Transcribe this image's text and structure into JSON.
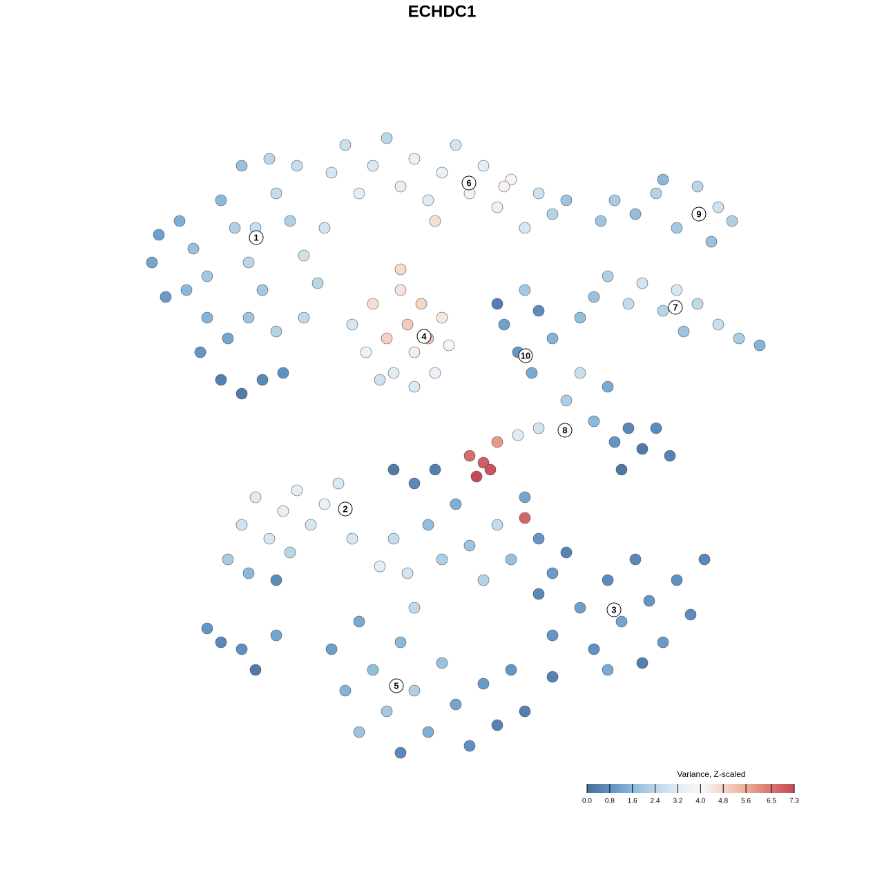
{
  "chart_data": {
    "type": "scatter",
    "title": "ECHDC1",
    "xlim": [
      0,
      128
    ],
    "ylim": [
      0,
      128
    ],
    "x": [
      22,
      24,
      26,
      28,
      30,
      32,
      34,
      36,
      38,
      40,
      42,
      44,
      46,
      35,
      39,
      43,
      30,
      33,
      36,
      40,
      44,
      32,
      35,
      38,
      41,
      29,
      27,
      23,
      47,
      37,
      48,
      50,
      52,
      54,
      56,
      58,
      60,
      62,
      64,
      66,
      68,
      70,
      72,
      74,
      76,
      78,
      80,
      82,
      63,
      73,
      87,
      89,
      92,
      95,
      98,
      101,
      104,
      106,
      103,
      96,
      86,
      88,
      91,
      93,
      96,
      99,
      101,
      104,
      107,
      110,
      84,
      98,
      51,
      53,
      54,
      56,
      57,
      58,
      59,
      60,
      61,
      62,
      63,
      64,
      65,
      55,
      60,
      58,
      73,
      75,
      77,
      78,
      80,
      76,
      72,
      82,
      84,
      86,
      88,
      89,
      91,
      93,
      95,
      97,
      90,
      78,
      75,
      68,
      69,
      70,
      72,
      71,
      76,
      33,
      35,
      37,
      39,
      41,
      43,
      45,
      47,
      49,
      51,
      36,
      40,
      42,
      55,
      57,
      59,
      60,
      62,
      64,
      66,
      68,
      70,
      72,
      74,
      76,
      78,
      80,
      63,
      57,
      78,
      80,
      82,
      84,
      86,
      88,
      90,
      92,
      94,
      96,
      98,
      100,
      102,
      88,
      93,
      80,
      48,
      50,
      52,
      54,
      56,
      58,
      60,
      62,
      64,
      66,
      68,
      70,
      72,
      74,
      52,
      58,
      76,
      60,
      30,
      32,
      35,
      37,
      40
    ],
    "y": [
      90,
      85,
      96,
      92,
      88,
      99,
      95,
      90,
      86,
      100,
      96,
      91,
      87,
      104,
      105,
      104,
      82,
      79,
      82,
      80,
      82,
      73,
      71,
      73,
      74,
      77,
      86,
      94,
      95,
      95,
      103,
      107,
      100,
      104,
      108,
      101,
      105,
      99,
      103,
      107,
      100,
      104,
      98,
      102,
      95,
      100,
      97,
      99,
      96,
      101,
      96,
      99,
      97,
      100,
      95,
      101,
      98,
      96,
      93,
      102,
      85,
      88,
      84,
      87,
      83,
      80,
      84,
      81,
      79,
      78,
      82,
      86,
      81,
      77,
      84,
      79,
      74,
      86,
      81,
      77,
      84,
      79,
      74,
      82,
      78,
      73,
      72,
      89,
      81,
      77,
      74,
      83,
      79,
      86,
      84,
      70,
      74,
      67,
      72,
      64,
      66,
      63,
      66,
      62,
      60,
      66,
      65,
      62,
      59,
      61,
      64,
      60,
      53,
      47,
      52,
      56,
      50,
      54,
      57,
      52,
      55,
      58,
      50,
      45,
      44,
      48,
      46,
      50,
      45,
      58,
      52,
      47,
      55,
      49,
      44,
      52,
      47,
      56,
      50,
      45,
      60,
      60,
      42,
      36,
      48,
      40,
      34,
      44,
      38,
      47,
      41,
      35,
      44,
      39,
      47,
      31,
      32,
      30,
      34,
      28,
      38,
      31,
      25,
      35,
      28,
      22,
      32,
      26,
      20,
      29,
      23,
      31,
      22,
      19,
      25,
      40,
      37,
      35,
      34,
      31,
      36
    ],
    "values": [
      1.2,
      1.0,
      1.4,
      1.8,
      2.0,
      1.6,
      2.2,
      2.4,
      2.0,
      2.6,
      2.2,
      2.8,
      2.4,
      1.8,
      2.4,
      2.6,
      1.5,
      1.2,
      1.9,
      2.3,
      2.5,
      0.4,
      0.3,
      0.6,
      0.8,
      0.9,
      1.6,
      1.1,
      2.9,
      2.7,
      3.0,
      2.7,
      3.3,
      3.1,
      2.4,
      3.4,
      3.6,
      3.2,
      3.5,
      2.9,
      3.7,
      3.4,
      3.6,
      3.9,
      3.0,
      2.8,
      2.3,
      1.9,
      4.6,
      4.2,
      1.9,
      2.1,
      1.7,
      2.3,
      2.0,
      2.4,
      2.8,
      2.2,
      1.8,
      1.6,
      1.8,
      2.2,
      2.6,
      2.9,
      2.3,
      1.9,
      2.5,
      2.7,
      2.1,
      1.5,
      1.7,
      3.0,
      3.0,
      3.6,
      4.6,
      4.9,
      3.2,
      4.5,
      5.0,
      4.3,
      4.8,
      5.2,
      3.5,
      4.4,
      4.1,
      2.8,
      3.1,
      4.7,
      1.1,
      0.9,
      1.3,
      0.7,
      1.5,
      2.0,
      0.4,
      2.2,
      2.7,
      1.6,
      1.3,
      0.9,
      0.6,
      0.3,
      0.7,
      0.5,
      0.2,
      2.9,
      3.2,
      6.6,
      7.3,
      6.9,
      5.9,
      7.1,
      6.8,
      2.1,
      2.9,
      3.2,
      3.0,
      3.4,
      3.3,
      3.0,
      3.5,
      3.1,
      3.0,
      1.6,
      0.7,
      2.4,
      3.3,
      2.6,
      2.9,
      0.6,
      1.7,
      2.2,
      1.4,
      1.9,
      2.3,
      2.6,
      1.8,
      1.2,
      0.9,
      1.0,
      0.4,
      0.3,
      0.6,
      0.9,
      0.5,
      1.1,
      0.8,
      0.7,
      1.2,
      0.6,
      0.9,
      1.0,
      0.8,
      0.7,
      0.6,
      1.3,
      0.4,
      0.5,
      1.1,
      1.5,
      1.3,
      1.7,
      2.0,
      1.6,
      2.2,
      1.4,
      1.8,
      1.2,
      0.8,
      1.0,
      0.5,
      0.9,
      1.9,
      0.6,
      0.4,
      2.5,
      0.9,
      0.6,
      0.8,
      0.3,
      1.2
    ],
    "cluster_labels": [
      {
        "label": "1",
        "x": 37.1,
        "y": 93.6
      },
      {
        "label": "2",
        "x": 50.0,
        "y": 54.3
      },
      {
        "label": "3",
        "x": 88.9,
        "y": 39.7
      },
      {
        "label": "4",
        "x": 61.4,
        "y": 79.3
      },
      {
        "label": "5",
        "x": 57.4,
        "y": 28.7
      },
      {
        "label": "6",
        "x": 67.9,
        "y": 101.5
      },
      {
        "label": "7",
        "x": 97.8,
        "y": 83.5
      },
      {
        "label": "8",
        "x": 81.8,
        "y": 65.7
      },
      {
        "label": "9",
        "x": 101.2,
        "y": 97.0
      },
      {
        "label": "10",
        "x": 76.1,
        "y": 76.5
      }
    ],
    "colorbar": {
      "title": "Variance, Z-scaled",
      "clim": [
        0,
        7.3
      ],
      "ticks": [
        {
          "value": 0,
          "label": "0.0"
        },
        0.8,
        1.6,
        2.4,
        3.2,
        {
          "value": 4,
          "label": "4.0"
        },
        4.8,
        5.6,
        6.5,
        7.3
      ],
      "colorscale": [
        "#4a6d99",
        "#5e91c4",
        "#8dbadb",
        "#bcd8e9",
        "#e2edf5",
        "#f7f7f7",
        "#f5d2c2",
        "#eba792",
        "#d9746f",
        "#c54a57"
      ]
    }
  }
}
